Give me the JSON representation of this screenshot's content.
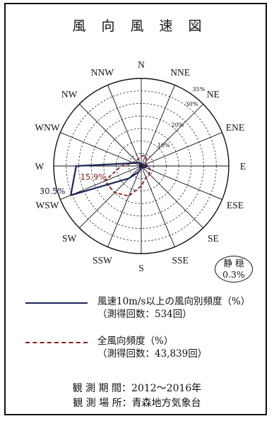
{
  "header": {
    "title": "風向風速図"
  },
  "chart_data": {
    "type": "radar",
    "directions": [
      "N",
      "NNE",
      "NE",
      "ENE",
      "E",
      "ESE",
      "SE",
      "SSE",
      "S",
      "SSW",
      "SW",
      "WSW",
      "W",
      "WNW",
      "NW",
      "NNW"
    ],
    "ring_labels": [
      "10%",
      "20%",
      "30%",
      "35%"
    ],
    "rmax": 35,
    "series": [
      {
        "name": "風速10m/s以上の風向別頻度（%）",
        "values": [
          1.0,
          0.5,
          0.5,
          1.0,
          2.5,
          1.5,
          1.0,
          0.5,
          0.5,
          2.5,
          7.0,
          30.5,
          26.0,
          3.0,
          2.0,
          1.0
        ],
        "color": "#1a2456",
        "style": "solid"
      },
      {
        "name": "全風向頻度（%）",
        "values": [
          4.0,
          4.5,
          3.0,
          2.0,
          2.5,
          4.0,
          4.5,
          5.0,
          8.0,
          13.0,
          15.0,
          15.9,
          8.0,
          3.5,
          3.0,
          3.0
        ],
        "color": "#8e1b1b",
        "style": "dashed"
      }
    ],
    "annotations": [
      {
        "text": "30.5%",
        "direction": "WSW",
        "value": 30.5
      },
      {
        "text": "15.9%",
        "direction": "WSW",
        "value": 15.9
      }
    ]
  },
  "legend": {
    "solid": {
      "label": "風速10m/s以上の風向別頻度（%）",
      "sub": "（測得回数：534回）"
    },
    "dashed": {
      "label": "全風向頻度（%）",
      "sub": "（測得回数：43,839回）"
    }
  },
  "calm": {
    "label": "静 穏",
    "value": "0.3%"
  },
  "footer": {
    "period": "観 測 期 間：2012～2016年",
    "place": "観 測 場 所：青森地方気象台"
  }
}
